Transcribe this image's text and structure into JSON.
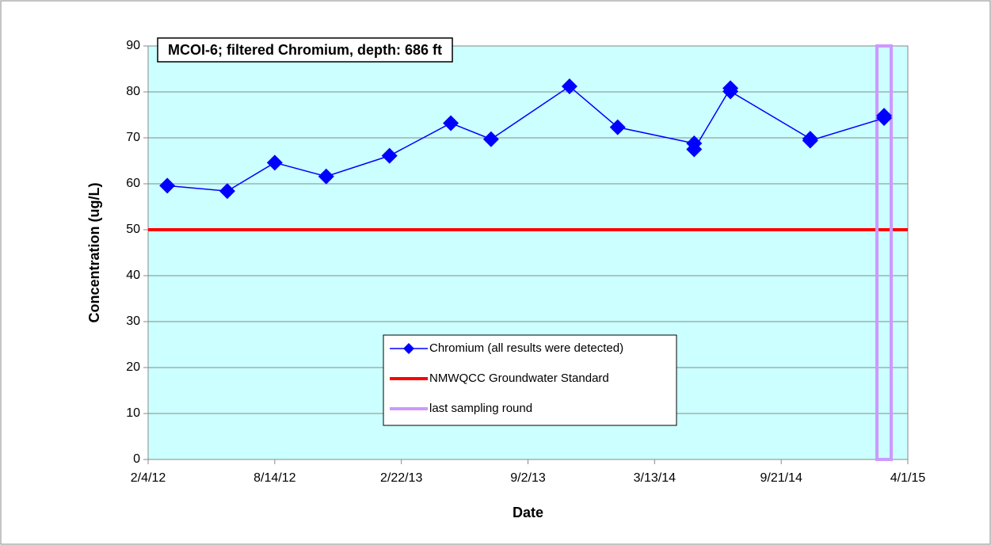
{
  "chart_data": {
    "type": "line",
    "title": "MCOI-6;  filtered Chromium, depth: 686 ft",
    "x_label": "Date",
    "y_label": "Concentration (ug/L)",
    "xlim": [
      "2012-02-04",
      "2015-04-01"
    ],
    "xticks": [
      {
        "value": "2012-02-04",
        "label": "2/4/12"
      },
      {
        "value": "2012-08-14",
        "label": "8/14/12"
      },
      {
        "value": "2013-02-22",
        "label": "2/22/13"
      },
      {
        "value": "2013-09-02",
        "label": "9/2/13"
      },
      {
        "value": "2014-03-13",
        "label": "3/13/14"
      },
      {
        "value": "2014-09-21",
        "label": "9/21/14"
      },
      {
        "value": "2015-04-01",
        "label": "4/1/15"
      }
    ],
    "ylim": [
      0,
      90
    ],
    "yticks": [
      0,
      10,
      20,
      30,
      40,
      50,
      60,
      70,
      80,
      90
    ],
    "grid": true,
    "background": "#ccffff",
    "series": [
      {
        "name": "Chromium (all results were detected)",
        "color": "#0000ff",
        "x": [
          "2012-03-04",
          "2012-06-03",
          "2012-08-14",
          "2012-10-31",
          "2013-02-04",
          "2013-05-08",
          "2013-07-08",
          "2013-11-04",
          "2014-01-16",
          "2014-05-12",
          "2014-05-12",
          "2014-07-06",
          "2014-07-06",
          "2014-11-04",
          "2014-11-04",
          "2015-02-24",
          "2015-02-24"
        ],
        "values": [
          59.6,
          58.4,
          64.6,
          61.6,
          66.1,
          73.2,
          69.7,
          81.2,
          72.3,
          68.8,
          67.5,
          80.8,
          80.1,
          69.8,
          69.4,
          74.3,
          74.8
        ]
      }
    ],
    "standard": {
      "name": "NMWQCC Groundwater Standard",
      "color": "#ff0000",
      "value": 50
    },
    "last_sampling": {
      "name": "last sampling round",
      "color": "#cc99ff",
      "x": "2015-02-24"
    }
  }
}
